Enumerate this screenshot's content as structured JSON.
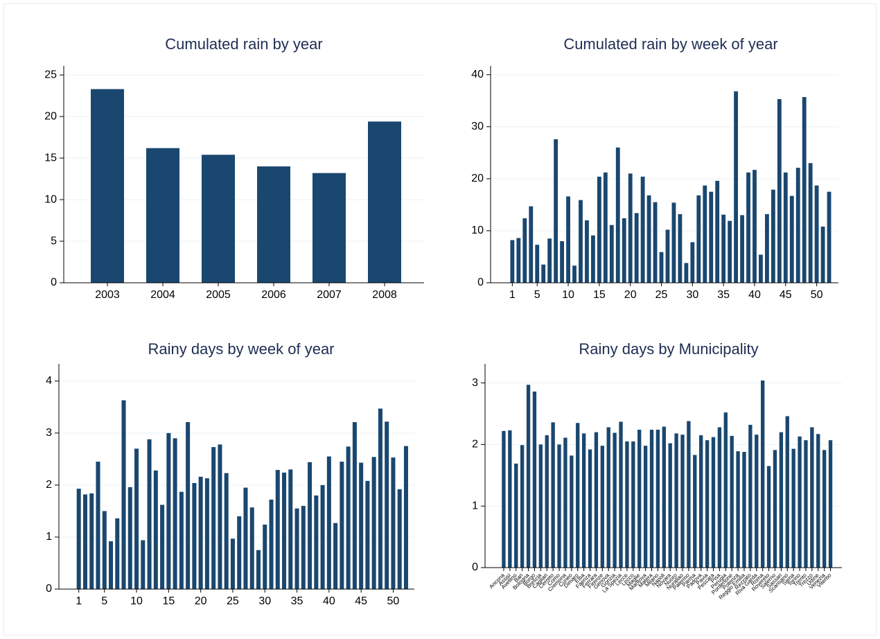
{
  "chart_data": [
    {
      "type": "bar",
      "title": "Cumulated rain by year",
      "color": "#1a476f",
      "grid": true,
      "categories": [
        "2003",
        "2004",
        "2005",
        "2006",
        "2007",
        "2008"
      ],
      "values": [
        23.3,
        16.2,
        15.4,
        14.0,
        13.2,
        19.4
      ],
      "ylim": [
        0,
        26.1
      ],
      "yticks": [
        0,
        5,
        10,
        15,
        20,
        25
      ]
    },
    {
      "type": "bar",
      "title": "Cumulated rain by week of year",
      "color": "#1a476f",
      "grid": true,
      "x": [
        1,
        2,
        3,
        4,
        5,
        6,
        7,
        8,
        9,
        10,
        11,
        12,
        13,
        14,
        15,
        16,
        17,
        18,
        19,
        20,
        21,
        22,
        23,
        24,
        25,
        26,
        27,
        28,
        29,
        30,
        31,
        32,
        33,
        34,
        35,
        36,
        37,
        38,
        39,
        40,
        41,
        42,
        43,
        44,
        45,
        46,
        47,
        48,
        49,
        50,
        51,
        52
      ],
      "values": [
        8.2,
        8.6,
        12.4,
        14.7,
        7.3,
        3.5,
        8.5,
        27.6,
        8.0,
        16.6,
        3.3,
        15.9,
        12.0,
        9.1,
        20.4,
        21.2,
        11.1,
        26.0,
        12.4,
        21.0,
        13.4,
        20.4,
        16.8,
        15.5,
        5.9,
        10.2,
        15.4,
        13.2,
        3.8,
        7.8,
        16.8,
        18.7,
        17.5,
        19.6,
        13.1,
        11.9,
        36.8,
        13.0,
        21.2,
        21.7,
        5.4,
        13.2,
        17.9,
        35.3,
        21.2,
        16.7,
        22.1,
        35.7,
        23.0,
        18.7,
        10.8,
        17.5
      ],
      "xlim": [
        -2.5,
        53.5
      ],
      "xticks": [
        1,
        5,
        10,
        15,
        20,
        25,
        30,
        35,
        40,
        45,
        50
      ],
      "ylim": [
        0,
        41.7
      ],
      "yticks": [
        0,
        10,
        20,
        30,
        40
      ]
    },
    {
      "type": "bar",
      "title": "Rainy days by week of year",
      "color": "#1a476f",
      "grid": true,
      "x": [
        1,
        2,
        3,
        4,
        5,
        6,
        7,
        8,
        9,
        10,
        11,
        12,
        13,
        14,
        15,
        16,
        17,
        18,
        19,
        20,
        21,
        22,
        23,
        24,
        25,
        26,
        27,
        28,
        29,
        30,
        31,
        32,
        33,
        34,
        35,
        36,
        37,
        38,
        39,
        40,
        41,
        42,
        43,
        44,
        45,
        46,
        47,
        48,
        49,
        50,
        51,
        52
      ],
      "values": [
        1.93,
        1.82,
        1.84,
        2.45,
        1.5,
        0.92,
        1.36,
        3.63,
        1.96,
        2.7,
        0.94,
        2.88,
        2.28,
        1.62,
        3.0,
        2.9,
        1.87,
        3.21,
        2.04,
        2.16,
        2.13,
        2.73,
        2.78,
        2.23,
        0.97,
        1.4,
        1.95,
        1.57,
        0.75,
        1.24,
        1.72,
        2.29,
        2.24,
        2.3,
        1.55,
        1.6,
        2.44,
        1.8,
        2.0,
        2.55,
        1.27,
        2.45,
        2.74,
        3.21,
        2.43,
        2.08,
        2.54,
        3.47,
        3.22,
        2.53,
        1.92,
        2.75
      ],
      "xlim": [
        -2.1,
        53.3
      ],
      "xticks": [
        1,
        5,
        10,
        15,
        20,
        25,
        30,
        35,
        40,
        45,
        50
      ],
      "ylim": [
        0,
        4.33
      ],
      "yticks": [
        0,
        1,
        2,
        3,
        4
      ]
    },
    {
      "type": "bar",
      "title": "Rainy days by Municipality",
      "color": "#1a476f",
      "grid": true,
      "categories": [
        "Ancona",
        "Assisi",
        "Avellino",
        "Bari",
        "Bologna",
        "Borgo",
        "Brescia",
        "Cagliari",
        "Cerreto",
        "Como",
        "Cremona",
        "Cuneo",
        "Dimaro",
        "Elba",
        "Faenza",
        "Ferrara",
        "Firenze",
        "Genova",
        "Gorizia",
        "La Spezia",
        "Lecce",
        "Lecco",
        "Maglie",
        "Mantova",
        "Matera",
        "Milano",
        "Napoli",
        "Novara",
        "Nuoro",
        "Nurallao",
        "Palermo",
        "Parma",
        "Padova",
        "Pavia",
        "Pescara",
        "Pisa",
        "Perugia",
        "Pordenone",
        "Potenza",
        "Reggio Emilia",
        "Rezzato",
        "Riva Garda",
        "Roma",
        "Rovereto",
        "Salerno",
        "Sassari",
        "Scansano",
        "Siena",
        "Torino",
        "Trento",
        "Trezzo",
        "Udine",
        "Venezia",
        "Viterbo"
      ],
      "values": [
        2.22,
        2.23,
        1.69,
        1.99,
        2.97,
        2.86,
        2.0,
        2.15,
        2.36,
        2.0,
        2.11,
        1.82,
        2.35,
        2.18,
        1.92,
        2.2,
        1.98,
        2.28,
        2.19,
        2.37,
        2.05,
        2.05,
        2.24,
        1.98,
        2.24,
        2.24,
        2.29,
        2.02,
        2.18,
        2.16,
        2.38,
        1.83,
        2.15,
        2.07,
        2.12,
        2.28,
        2.52,
        2.14,
        1.89,
        1.88,
        2.32,
        2.16,
        3.04,
        1.65,
        1.91,
        2.2,
        2.46,
        1.93,
        2.13,
        2.07,
        2.28,
        2.17,
        1.91,
        2.07
      ],
      "ylim": [
        0,
        3.31
      ],
      "yticks": [
        0,
        1,
        2,
        3
      ]
    }
  ]
}
